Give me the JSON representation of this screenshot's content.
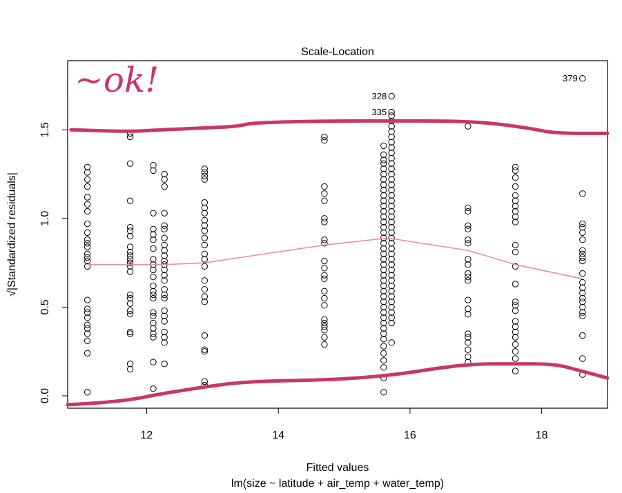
{
  "chart_data": {
    "type": "scatter",
    "title": "Scale-Location",
    "xlabel": "Fitted values",
    "subtitle": "lm(size ~ latitude + air_temp + water_temp)",
    "ylabel": "√|Standardized residuals|",
    "xlim": [
      10.8,
      19.0
    ],
    "ylim": [
      -0.07,
      1.89
    ],
    "x_ticks": [
      12,
      14,
      16,
      18
    ],
    "y_ticks": [
      0.0,
      0.5,
      1.0,
      1.5
    ],
    "grid": false,
    "point_style": "open-circle",
    "groups": [
      {
        "x": 11.1,
        "y": [
          1.29,
          1.26,
          1.22,
          1.18,
          1.12,
          1.08,
          1.04,
          0.97,
          0.92,
          0.88,
          0.86,
          0.84,
          0.8,
          0.78,
          0.76,
          0.73,
          0.54,
          0.49,
          0.47,
          0.44,
          0.4,
          0.38,
          0.35,
          0.31,
          0.24,
          0.02
        ]
      },
      {
        "x": 11.75,
        "y": [
          1.48,
          1.46,
          1.31,
          1.1,
          0.95,
          0.93,
          0.9,
          0.84,
          0.81,
          0.79,
          0.77,
          0.75,
          0.73,
          0.7,
          0.57,
          0.55,
          0.52,
          0.48,
          0.46,
          0.36,
          0.35,
          0.18,
          0.15
        ]
      },
      {
        "x": 12.1,
        "y": [
          1.3,
          1.27,
          1.03,
          0.94,
          0.91,
          0.88,
          0.83,
          0.77,
          0.74,
          0.71,
          0.67,
          0.62,
          0.59,
          0.57,
          0.55,
          0.47,
          0.45,
          0.41,
          0.38,
          0.35,
          0.33,
          0.19,
          0.04
        ]
      },
      {
        "x": 12.27,
        "y": [
          1.25,
          1.22,
          1.18,
          1.03,
          0.96,
          0.94,
          0.89,
          0.85,
          0.82,
          0.79,
          0.76,
          0.74,
          0.71,
          0.68,
          0.65,
          0.6,
          0.57,
          0.55,
          0.48,
          0.45,
          0.42,
          0.36,
          0.33,
          0.3,
          0.18
        ]
      },
      {
        "x": 12.88,
        "y": [
          1.28,
          1.26,
          1.24,
          1.22,
          1.09,
          1.06,
          1.03,
          0.99,
          0.96,
          0.93,
          0.89,
          0.85,
          0.8,
          0.77,
          0.73,
          0.65,
          0.6,
          0.56,
          0.53,
          0.34,
          0.26,
          0.25,
          0.08,
          0.06
        ]
      },
      {
        "x": 14.7,
        "y": [
          1.46,
          1.44,
          1.18,
          1.14,
          1.1,
          1.0,
          0.98,
          0.88,
          0.86,
          0.76,
          0.72,
          0.68,
          0.66,
          0.59,
          0.55,
          0.51,
          0.43,
          0.41,
          0.39,
          0.37,
          0.33,
          0.29
        ]
      },
      {
        "x": 15.6,
        "y": [
          1.41,
          1.36,
          1.33,
          1.31,
          1.28,
          1.25,
          1.22,
          1.19,
          1.16,
          1.13,
          1.1,
          1.07,
          1.04,
          1.01,
          0.98,
          0.95,
          0.92,
          0.89,
          0.86,
          0.83,
          0.8,
          0.77,
          0.74,
          0.71,
          0.68,
          0.65,
          0.62,
          0.59,
          0.56,
          0.53,
          0.5,
          0.47,
          0.44,
          0.41,
          0.38,
          0.35,
          0.32,
          0.28,
          0.24,
          0.2,
          0.16,
          0.1,
          0.02
        ]
      },
      {
        "x": 15.72,
        "y": [
          1.58,
          1.55,
          1.52,
          1.49,
          1.46,
          1.43,
          1.4,
          1.37,
          1.34,
          1.31,
          1.28,
          1.25,
          1.22,
          1.19,
          1.16,
          1.13,
          1.1,
          1.07,
          1.04,
          1.01,
          0.98,
          0.95,
          0.92,
          0.89,
          0.86,
          0.83,
          0.8,
          0.77,
          0.74,
          0.71,
          0.68,
          0.65,
          0.62,
          0.59,
          0.56,
          0.53,
          0.5,
          0.47,
          0.44,
          0.41,
          0.3
        ]
      },
      {
        "x": 16.88,
        "y": [
          1.52,
          1.06,
          1.04,
          0.96,
          0.94,
          0.88,
          0.86,
          0.77,
          0.74,
          0.69,
          0.67,
          0.65,
          0.54,
          0.49,
          0.46,
          0.35,
          0.33,
          0.3,
          0.26,
          0.22,
          0.19
        ]
      },
      {
        "x": 17.6,
        "y": [
          1.29,
          1.27,
          1.23,
          1.18,
          1.13,
          1.1,
          1.07,
          1.04,
          1.01,
          0.98,
          0.85,
          0.81,
          0.73,
          0.63,
          0.53,
          0.51,
          0.48,
          0.42,
          0.39,
          0.36,
          0.33,
          0.29,
          0.25,
          0.21,
          0.14
        ]
      },
      {
        "x": 18.62,
        "y": [
          1.14,
          0.97,
          0.95,
          0.92,
          0.88,
          0.82,
          0.8,
          0.78,
          0.76,
          0.69,
          0.64,
          0.61,
          0.58,
          0.55,
          0.53,
          0.5,
          0.47,
          0.45,
          0.34,
          0.21,
          0.12
        ]
      }
    ],
    "labeled_points": [
      {
        "label": "379",
        "x": 18.62,
        "y": 1.79
      },
      {
        "label": "328",
        "x": 15.72,
        "y": 1.69
      },
      {
        "label": "335",
        "x": 15.72,
        "y": 1.6
      }
    ],
    "smooth_line": {
      "color": "#e8909a",
      "points": [
        [
          11.1,
          0.74
        ],
        [
          12.27,
          0.74
        ],
        [
          12.88,
          0.75
        ],
        [
          14.7,
          0.85
        ],
        [
          15.66,
          0.89
        ],
        [
          16.88,
          0.82
        ],
        [
          17.6,
          0.74
        ],
        [
          18.62,
          0.66
        ]
      ]
    },
    "annotation": {
      "text": "~ok!",
      "color": "#c8366a",
      "upper_curve": [
        [
          10.85,
          1.5
        ],
        [
          11.75,
          1.49
        ],
        [
          12.2,
          1.5
        ],
        [
          12.88,
          1.51
        ],
        [
          13.4,
          1.52
        ],
        [
          13.6,
          1.54
        ],
        [
          14.7,
          1.55
        ],
        [
          15.7,
          1.55
        ],
        [
          16.6,
          1.55
        ],
        [
          17.2,
          1.54
        ],
        [
          17.8,
          1.51
        ],
        [
          18.2,
          1.48
        ],
        [
          19.0,
          1.48
        ]
      ],
      "lower_curve": [
        [
          10.8,
          -0.05
        ],
        [
          11.3,
          -0.04
        ],
        [
          11.8,
          -0.02
        ],
        [
          12.2,
          0.01
        ],
        [
          12.88,
          0.05
        ],
        [
          13.5,
          0.08
        ],
        [
          14.7,
          0.09
        ],
        [
          15.2,
          0.1
        ],
        [
          15.8,
          0.12
        ],
        [
          16.5,
          0.16
        ],
        [
          17.0,
          0.18
        ],
        [
          17.6,
          0.18
        ],
        [
          18.2,
          0.18
        ],
        [
          18.6,
          0.14
        ],
        [
          19.0,
          0.1
        ]
      ]
    }
  }
}
